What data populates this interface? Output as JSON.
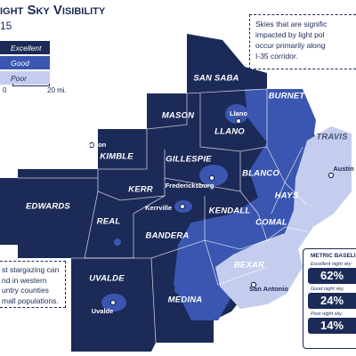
{
  "header": {
    "title": "ight Sky Visibility",
    "subtitle": "15"
  },
  "legend": [
    {
      "label": "Excellent",
      "color": "#1b2a57"
    },
    {
      "label": "Good",
      "color": "#3a56b0"
    },
    {
      "label": "Poor",
      "color": "#c5cdef"
    }
  ],
  "scale": {
    "start": "0",
    "end": "20 mi."
  },
  "counties": [
    "SAN SABA",
    "BURNET",
    "MASON",
    "LLANO",
    "TRAVIS",
    "KIMBLE",
    "GILLESPIE",
    "BLANCO",
    "HAYS",
    "KERR",
    "EDWARDS",
    "KENDALL",
    "COMAL",
    "REAL",
    "BANDERA",
    "BEXAR",
    "UVALDE",
    "MEDINA"
  ],
  "cities": [
    "Llano",
    "Junction",
    "Fredericksburg",
    "Austin",
    "Kerrville",
    "San Antonio",
    "Uvalde"
  ],
  "callout_right": [
    "Skies that are signific",
    "impacted by light pol",
    "occur primarily along",
    "I-35 corridor."
  ],
  "callout_left": [
    "st stargazing can",
    "nd in western",
    "untry counties",
    "mall populations."
  ],
  "metrics": {
    "title": "METRIC BASELIN",
    "items": [
      {
        "label": "Excellent night sky",
        "value": "62%"
      },
      {
        "label": "Good night sky,",
        "value": "24%"
      },
      {
        "label": "Poor night sky,",
        "value": "14%"
      }
    ]
  }
}
